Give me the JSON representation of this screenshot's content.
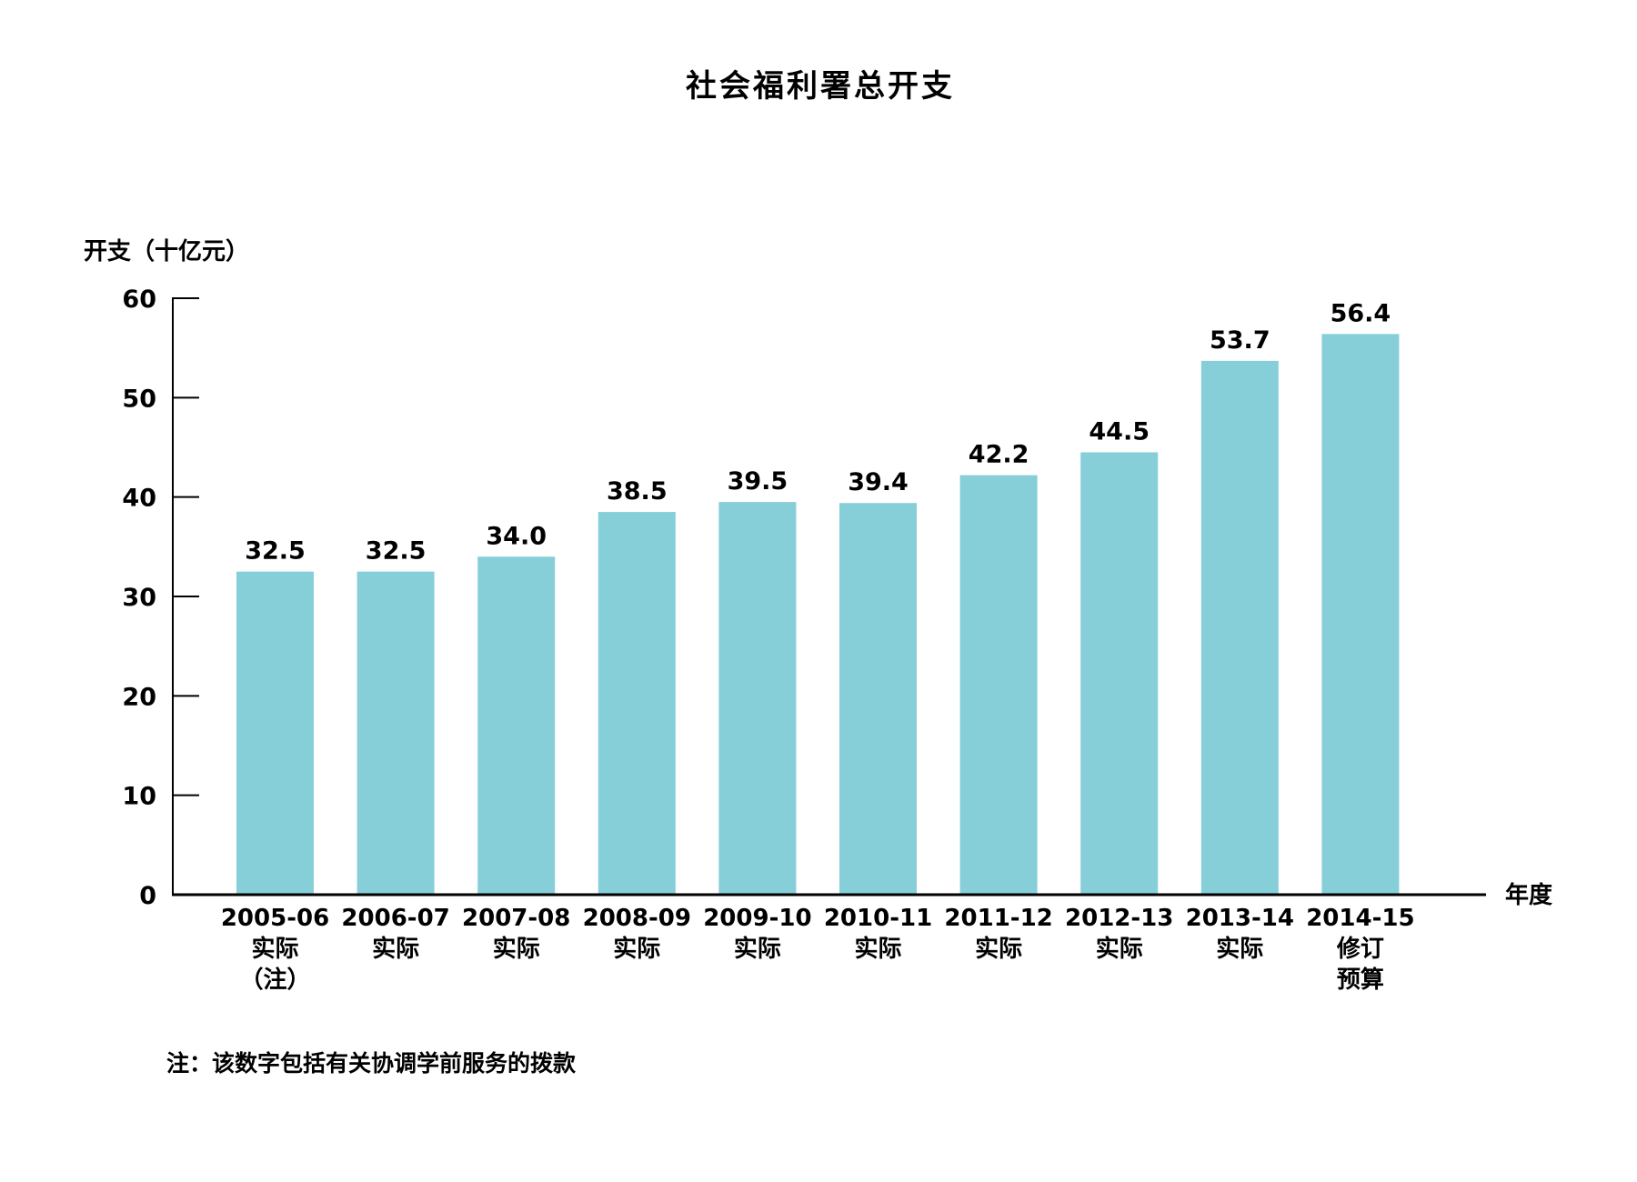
{
  "chart_data": {
    "type": "bar",
    "title": "社会福利署总开支",
    "ylabel": "开支（十亿元）",
    "xlabel": "年度",
    "ylim": [
      0,
      60
    ],
    "yticks": [
      0,
      10,
      20,
      30,
      40,
      50,
      60
    ],
    "grid": false,
    "bar_color": "#86CED8",
    "categories": [
      [
        "2005-06",
        "实际",
        "（注）"
      ],
      [
        "2006-07",
        "实际"
      ],
      [
        "2007-08",
        "实际"
      ],
      [
        "2008-09",
        "实际"
      ],
      [
        "2009-10",
        "实际"
      ],
      [
        "2010-11",
        "实际"
      ],
      [
        "2011-12",
        "实际"
      ],
      [
        "2012-13",
        "实际"
      ],
      [
        "2013-14",
        "实际"
      ],
      [
        "2014-15",
        "修订",
        "预算"
      ]
    ],
    "values": [
      32.5,
      32.5,
      34.0,
      38.5,
      39.5,
      39.4,
      42.2,
      44.5,
      53.7,
      56.4
    ],
    "value_labels": [
      "32.5",
      "32.5",
      "34.0",
      "38.5",
      "39.5",
      "39.4",
      "42.2",
      "44.5",
      "53.7",
      "56.4"
    ]
  },
  "note": "注：该数字包括有关协调学前服务的拨款"
}
